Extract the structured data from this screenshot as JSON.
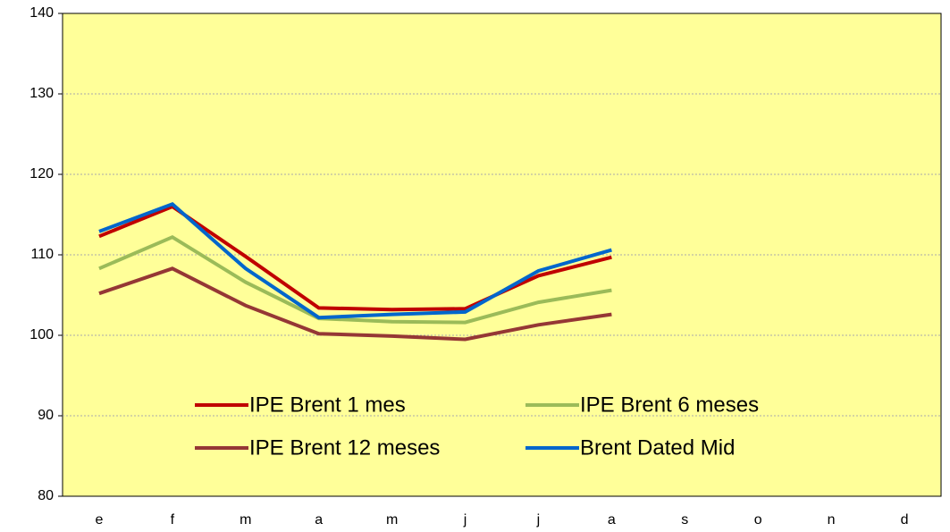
{
  "chart_data": {
    "type": "line",
    "categories": [
      "e",
      "f",
      "m",
      "a",
      "m",
      "j",
      "j",
      "a",
      "s",
      "o",
      "n",
      "d"
    ],
    "series": [
      {
        "name": "IPE Brent 1 mes",
        "color": "#c00000",
        "values": [
          112.3,
          116.0,
          109.8,
          103.4,
          103.2,
          103.3,
          107.4,
          109.7,
          null,
          null,
          null,
          null
        ]
      },
      {
        "name": "IPE Brent 6 meses",
        "color": "#9bbb59",
        "values": [
          108.3,
          112.2,
          106.6,
          102.1,
          101.7,
          101.6,
          104.1,
          105.6,
          null,
          null,
          null,
          null
        ]
      },
      {
        "name": "IPE Brent 12 meses",
        "color": "#953735",
        "values": [
          105.2,
          108.3,
          103.7,
          100.2,
          99.9,
          99.5,
          101.3,
          102.6,
          null,
          null,
          null,
          null
        ]
      },
      {
        "name": "Brent Dated Mid",
        "color": "#0066cc",
        "values": [
          112.9,
          116.3,
          108.3,
          102.2,
          102.6,
          102.9,
          108.0,
          110.6,
          null,
          null,
          null,
          null
        ]
      }
    ],
    "ylim": [
      80,
      140
    ],
    "yticks": [
      80,
      90,
      100,
      110,
      120,
      130,
      140
    ],
    "grid": true
  }
}
